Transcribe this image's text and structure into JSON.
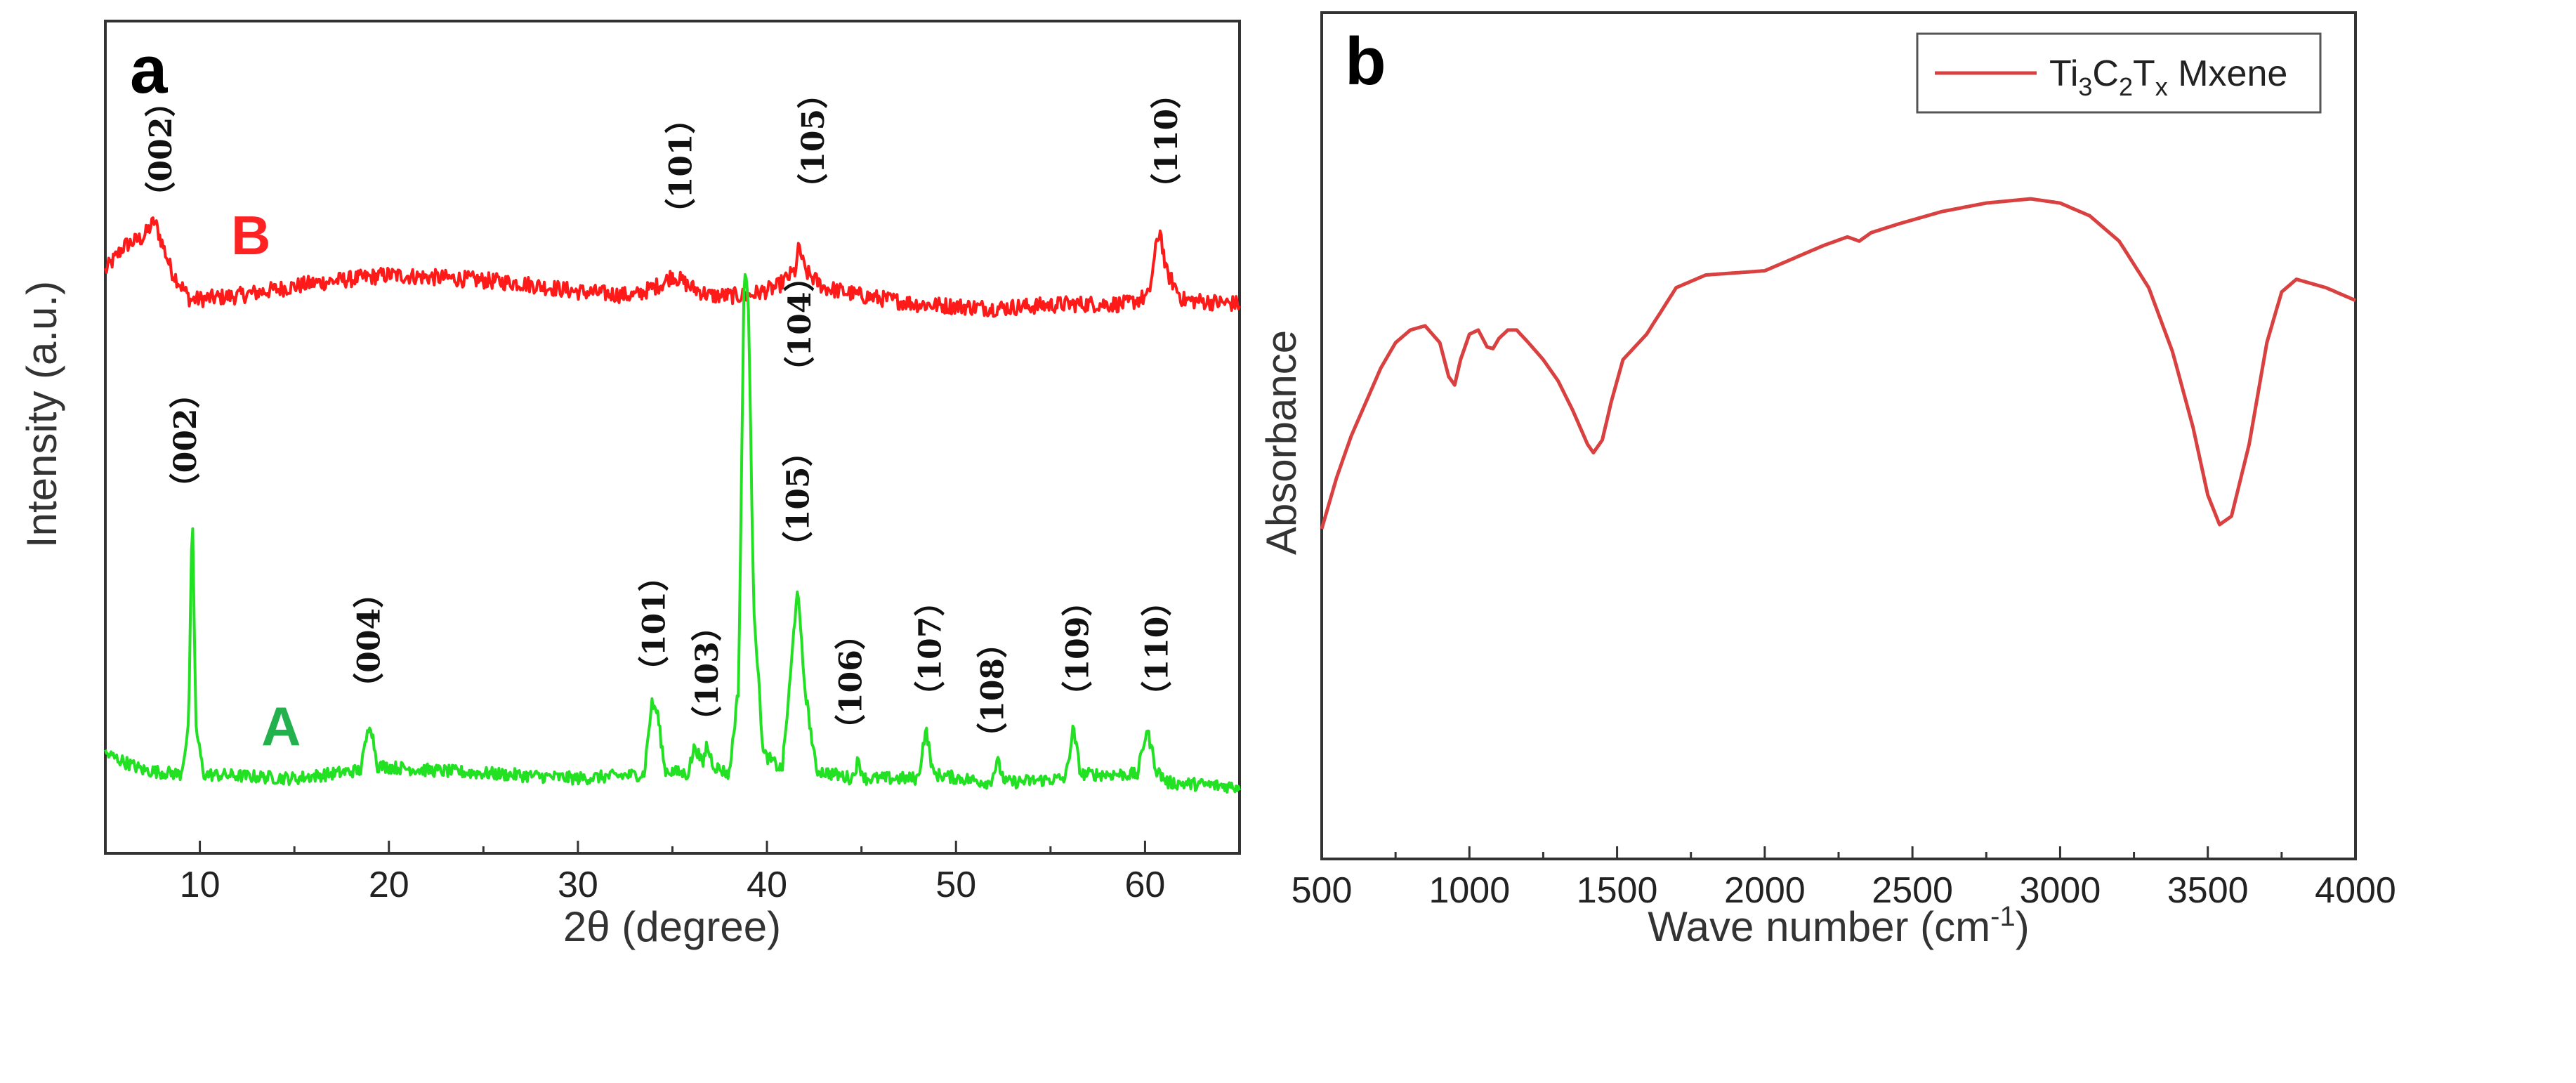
{
  "chart_data": [
    {
      "panel": "a",
      "type": "line",
      "xlabel": "2θ (degree)",
      "ylabel": "Intensity (a.u.)",
      "xlim": [
        5,
        65
      ],
      "ylim": [
        0,
        100
      ],
      "xticks": [
        10,
        20,
        30,
        40,
        50,
        60
      ],
      "series": [
        {
          "name": "B",
          "color": "#ff1a1a",
          "baseline": 65,
          "noise": 0.9,
          "points": [
            [
              5,
              70
            ],
            [
              6,
              73
            ],
            [
              7,
              74
            ],
            [
              7.6,
              76
            ],
            [
              8.5,
              70
            ],
            [
              9.5,
              66.5
            ],
            [
              12,
              67
            ],
            [
              16,
              68.5
            ],
            [
              20,
              69.5
            ],
            [
              24,
              69
            ],
            [
              27,
              68.5
            ],
            [
              30,
              67.5
            ],
            [
              33,
              67
            ],
            [
              34.5,
              68.5
            ],
            [
              35,
              69.5
            ],
            [
              36,
              68
            ],
            [
              37,
              67
            ],
            [
              39,
              67
            ],
            [
              40.5,
              68
            ],
            [
              41,
              69
            ],
            [
              41.5,
              70
            ],
            [
              41.7,
              73
            ],
            [
              42,
              70
            ],
            [
              43,
              68
            ],
            [
              45,
              67
            ],
            [
              48,
              66
            ],
            [
              52,
              65.5
            ],
            [
              56,
              66
            ],
            [
              59,
              66
            ],
            [
              60.2,
              67
            ],
            [
              60.6,
              73
            ],
            [
              60.8,
              75
            ],
            [
              61.1,
              70
            ],
            [
              62,
              66.5
            ],
            [
              65,
              66
            ]
          ]
        },
        {
          "name": "A",
          "color": "#22e022",
          "baseline": 8,
          "noise": 0.7,
          "points": [
            [
              5,
              12
            ],
            [
              7,
              10
            ],
            [
              9,
              9.5
            ],
            [
              9.4,
              15
            ],
            [
              9.6,
              41
            ],
            [
              9.8,
              15
            ],
            [
              10.2,
              9.5
            ],
            [
              15,
              9
            ],
            [
              18.5,
              10
            ],
            [
              19,
              16
            ],
            [
              19.4,
              10.5
            ],
            [
              22,
              10
            ],
            [
              26,
              9.5
            ],
            [
              30,
              9
            ],
            [
              33.5,
              9.5
            ],
            [
              33.9,
              18
            ],
            [
              34.2,
              17
            ],
            [
              34.6,
              10
            ],
            [
              35.8,
              9.5
            ],
            [
              36.2,
              13
            ],
            [
              36.6,
              10.5
            ],
            [
              36.8,
              13
            ],
            [
              37.2,
              10.5
            ],
            [
              38,
              9.5
            ],
            [
              38.5,
              20
            ],
            [
              38.8,
              70
            ],
            [
              39,
              68
            ],
            [
              39.3,
              30
            ],
            [
              39.8,
              12
            ],
            [
              40.8,
              10
            ],
            [
              41.2,
              20
            ],
            [
              41.6,
              32
            ],
            [
              42,
              20
            ],
            [
              42.6,
              10
            ],
            [
              44.5,
              9
            ],
            [
              44.8,
              11
            ],
            [
              45.2,
              9
            ],
            [
              48,
              9
            ],
            [
              48.4,
              15
            ],
            [
              48.8,
              9.5
            ],
            [
              51.8,
              8.5
            ],
            [
              52.2,
              11
            ],
            [
              52.6,
              8.5
            ],
            [
              55.8,
              9
            ],
            [
              56.2,
              15
            ],
            [
              56.6,
              9.5
            ],
            [
              59.6,
              9.5
            ],
            [
              60.1,
              15
            ],
            [
              60.6,
              10
            ],
            [
              61.2,
              8.5
            ],
            [
              65,
              8
            ]
          ]
        }
      ],
      "series_tags": [
        {
          "text": "B",
          "color": "#ff2222",
          "x": 12.7,
          "y": 72
        },
        {
          "text": "A",
          "color": "#22b14c",
          "x": 14.3,
          "y": 13
        }
      ],
      "annotations": [
        {
          "text": "（002）",
          "x": 8.5,
          "y": 77
        },
        {
          "text": "（101）",
          "x": 36,
          "y": 75
        },
        {
          "text": "（105）",
          "x": 43,
          "y": 78
        },
        {
          "text": "（110）",
          "x": 61.7,
          "y": 78
        },
        {
          "text": "（002）",
          "x": 9.8,
          "y": 42
        },
        {
          "text": "（004）",
          "x": 19.5,
          "y": 18
        },
        {
          "text": "（101）",
          "x": 34.6,
          "y": 20
        },
        {
          "text": "（103）",
          "x": 37.4,
          "y": 14
        },
        {
          "text": "（104）",
          "x": 42.3,
          "y": 56
        },
        {
          "text": "（105）",
          "x": 42.2,
          "y": 35
        },
        {
          "text": "（106）",
          "x": 45,
          "y": 13
        },
        {
          "text": "（107）",
          "x": 49.2,
          "y": 17
        },
        {
          "text": "（108）",
          "x": 52.5,
          "y": 12
        },
        {
          "text": "（109）",
          "x": 57,
          "y": 17
        },
        {
          "text": "（110）",
          "x": 61.2,
          "y": 17
        }
      ]
    },
    {
      "panel": "b",
      "type": "line",
      "xlabel": "Wave number (cm",
      "xlabel_sup": "-1",
      "xlabel_end": ")",
      "ylabel": "Absorbance",
      "xlim": [
        500,
        4000
      ],
      "ylim": [
        0,
        100
      ],
      "xticks": [
        500,
        1000,
        1500,
        2000,
        2500,
        3000,
        3500,
        4000
      ],
      "legend": {
        "placement": "top-right",
        "main": "Ti",
        "sub1": "3",
        "mid": "C",
        "sub2": "2",
        "mid2": "T",
        "sub3": "x",
        "tail": " Mxene"
      },
      "series": [
        {
          "name": "Ti3C2Tx Mxene",
          "color": "#d94040",
          "points": [
            [
              500,
              39
            ],
            [
              550,
              45
            ],
            [
              600,
              50
            ],
            [
              650,
              54
            ],
            [
              700,
              58
            ],
            [
              750,
              61
            ],
            [
              800,
              62.5
            ],
            [
              850,
              63
            ],
            [
              900,
              61
            ],
            [
              930,
              57
            ],
            [
              950,
              56
            ],
            [
              970,
              59
            ],
            [
              1000,
              62
            ],
            [
              1030,
              62.5
            ],
            [
              1060,
              60.5
            ],
            [
              1080,
              60.3
            ],
            [
              1100,
              61.5
            ],
            [
              1130,
              62.5
            ],
            [
              1160,
              62.5
            ],
            [
              1200,
              61
            ],
            [
              1250,
              59
            ],
            [
              1300,
              56.5
            ],
            [
              1350,
              53
            ],
            [
              1400,
              49
            ],
            [
              1420,
              48
            ],
            [
              1450,
              49.5
            ],
            [
              1480,
              54
            ],
            [
              1520,
              59
            ],
            [
              1600,
              62
            ],
            [
              1700,
              67.5
            ],
            [
              1800,
              69
            ],
            [
              2000,
              69.5
            ],
            [
              2200,
              72.5
            ],
            [
              2280,
              73.5
            ],
            [
              2320,
              73
            ],
            [
              2360,
              74
            ],
            [
              2450,
              75
            ],
            [
              2600,
              76.5
            ],
            [
              2750,
              77.5
            ],
            [
              2900,
              78
            ],
            [
              3000,
              77.5
            ],
            [
              3100,
              76
            ],
            [
              3200,
              73
            ],
            [
              3300,
              67.5
            ],
            [
              3380,
              60
            ],
            [
              3450,
              51
            ],
            [
              3500,
              43
            ],
            [
              3540,
              39.5
            ],
            [
              3580,
              40.5
            ],
            [
              3640,
              49
            ],
            [
              3700,
              61
            ],
            [
              3750,
              67
            ],
            [
              3800,
              68.5
            ],
            [
              3900,
              67.5
            ],
            [
              4000,
              66
            ]
          ]
        }
      ]
    }
  ],
  "panel_labels": {
    "a": "a",
    "b": "b"
  }
}
